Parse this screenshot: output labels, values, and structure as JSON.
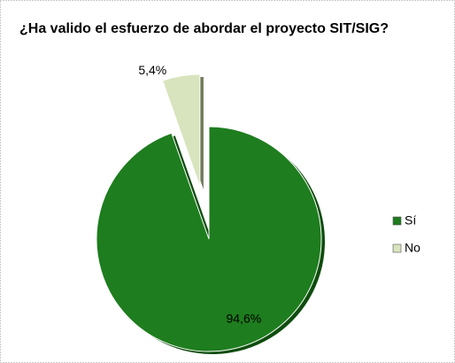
{
  "chart_data": {
    "type": "pie",
    "title": "¿Ha valido el esfuerzo de abordar el proyecto SIT/SIG?",
    "categories": [
      "Sí",
      "No"
    ],
    "values": [
      94.6,
      5.4
    ],
    "value_labels": [
      "94,6%",
      "5,4%"
    ],
    "colors": [
      "#1e7d1e",
      "#d8e4bd"
    ],
    "legend": "right"
  }
}
